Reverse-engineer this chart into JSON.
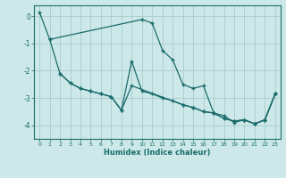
{
  "xlabel": "Humidex (Indice chaleur)",
  "bg_color": "#cce8e8",
  "grid_color": "#aacccc",
  "line_color": "#1a6b6b",
  "xlim": [
    -0.5,
    23.5
  ],
  "ylim": [
    -4.5,
    0.4
  ],
  "xticks": [
    0,
    1,
    2,
    3,
    4,
    5,
    6,
    7,
    8,
    9,
    10,
    11,
    12,
    13,
    14,
    15,
    16,
    17,
    18,
    19,
    20,
    21,
    22,
    23
  ],
  "yticks": [
    0,
    -1,
    -2,
    -3,
    -4
  ],
  "series1_x": [
    0,
    1,
    10,
    11,
    12,
    13,
    14,
    15,
    16,
    17,
    18,
    19,
    20,
    21,
    22,
    23
  ],
  "series1_y": [
    0.15,
    -0.85,
    -0.12,
    -0.25,
    -1.25,
    -1.6,
    -2.5,
    -2.65,
    -2.55,
    -3.55,
    -3.65,
    -3.9,
    -3.8,
    -3.95,
    -3.8,
    -2.85
  ],
  "series2_x": [
    1,
    2,
    3,
    4,
    5,
    6,
    7,
    8,
    9,
    14,
    15,
    16,
    17,
    18,
    19,
    20,
    21,
    22,
    23
  ],
  "series2_y": [
    -0.85,
    -2.1,
    -2.45,
    -2.65,
    -2.75,
    -2.85,
    -2.95,
    -3.45,
    -2.55,
    -3.25,
    -3.35,
    -3.5,
    -3.55,
    -3.75,
    -3.85,
    -3.8,
    -3.95,
    -3.8,
    -2.85
  ],
  "series3_x": [
    2,
    3,
    4,
    5,
    6,
    7,
    8,
    9,
    10,
    11,
    12,
    13,
    14,
    15,
    16,
    17,
    18,
    19,
    20,
    21,
    22,
    23
  ],
  "series3_y": [
    -2.1,
    -2.45,
    -2.65,
    -2.75,
    -2.85,
    -2.95,
    -3.45,
    -1.65,
    -2.75,
    -2.85,
    -3.0,
    -3.1,
    -3.25,
    -3.35,
    -3.5,
    -3.55,
    -3.75,
    -3.85,
    -3.8,
    -3.95,
    -3.8,
    -2.85
  ]
}
